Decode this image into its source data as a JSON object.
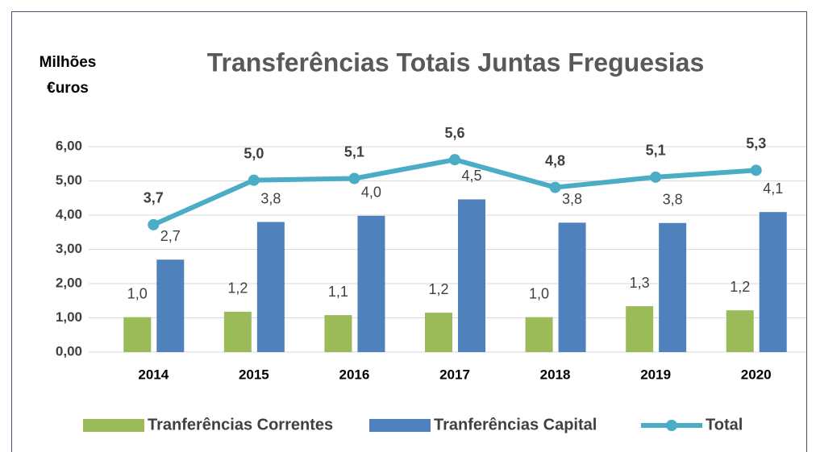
{
  "chart_data": {
    "type": "bar_line",
    "title": "Transferências Totais Juntas  Freguesias",
    "y_label": [
      "Milhões",
      "€uros"
    ],
    "categories": [
      "2014",
      "2015",
      "2016",
      "2017",
      "2018",
      "2019",
      "2020"
    ],
    "series": [
      {
        "name": "Tranferências Correntes",
        "type": "bar",
        "color": "#9bbb59",
        "values": [
          1.02,
          1.18,
          1.08,
          1.15,
          1.02,
          1.34,
          1.22
        ],
        "value_labels": [
          "1,0",
          "1,2",
          "1,1",
          "1,2",
          "1,0",
          "1,3",
          "1,2"
        ]
      },
      {
        "name": "Tranferências Capital",
        "type": "bar",
        "color": "#4f81bd",
        "values": [
          2.7,
          3.8,
          3.98,
          4.46,
          3.78,
          3.77,
          4.09
        ],
        "value_labels": [
          "2,7",
          "3,8",
          "4,0",
          "4,5",
          "3,8",
          "3,8",
          "4,1"
        ]
      },
      {
        "name": "Total",
        "type": "line",
        "color": "#4bacc6",
        "values": [
          3.72,
          5.02,
          5.07,
          5.62,
          4.81,
          5.11,
          5.31
        ],
        "value_labels": [
          "3,7",
          "5,0",
          "5,1",
          "5,6",
          "4,8",
          "5,1",
          "5,3"
        ]
      }
    ],
    "ylim": [
      0,
      6
    ],
    "yticks": [
      {
        "value": 0,
        "label": "0,00"
      },
      {
        "value": 1,
        "label": "1,00"
      },
      {
        "value": 2,
        "label": "2,00"
      },
      {
        "value": 3,
        "label": "3,00"
      },
      {
        "value": 4,
        "label": "4,00"
      },
      {
        "value": 5,
        "label": "5,00"
      },
      {
        "value": 6,
        "label": "6,00"
      }
    ],
    "grid": true,
    "legend": "bottom"
  }
}
